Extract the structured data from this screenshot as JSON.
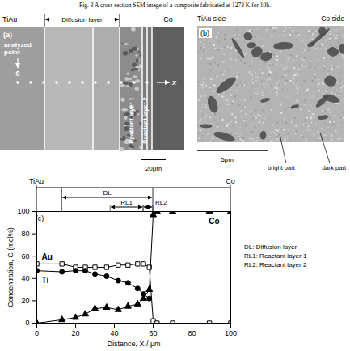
{
  "caption": "Fig. 3   A cross section SEM image of a composite fabricated at 1273 K for 10h.",
  "panel_a": {
    "label": "(a)",
    "left": "TiAu",
    "right": "Co",
    "diffusion_layer": "Diffusion layer",
    "analyzed_point": "analyzed point",
    "origin": "0",
    "direction": "x",
    "reactant_layers": [
      "Reactant layer 1",
      "Reactant layer 2"
    ],
    "scale_bar": "20μm"
  },
  "panel_b": {
    "label": "(b)",
    "left": "TiAu side",
    "right": "Co side",
    "scale_bar": "5μm",
    "annotations": [
      "bright part",
      "dark part"
    ]
  },
  "chart_data": {
    "type": "line",
    "panel_label": "(c)",
    "x_label": "Distance, X / μm",
    "y_label": "Concentration, C (mol%)",
    "x": [
      0,
      13,
      20,
      25,
      30,
      36,
      42,
      47,
      52,
      55,
      58,
      60,
      62,
      70,
      89,
      100
    ],
    "series": [
      {
        "name": "Au",
        "color": "#000000",
        "marker": "square-open",
        "line_style": "solid",
        "values": [
          53,
          53,
          50,
          50,
          50,
          50,
          52,
          52,
          53,
          53,
          50,
          2,
          0,
          0,
          0,
          0
        ]
      },
      {
        "name": "Ti",
        "color": "#000000",
        "marker": "circle",
        "line_style": "solid",
        "values": [
          47,
          46,
          47,
          47,
          44,
          42,
          38,
          36,
          31,
          26,
          22,
          null,
          null,
          null,
          null,
          null
        ]
      },
      {
        "name": "Co",
        "color": "#000000",
        "marker": "triangle",
        "line_style": "solid",
        "values": [
          0,
          3,
          5,
          8,
          13,
          14,
          12,
          15,
          17,
          22,
          30,
          97,
          100,
          100,
          100,
          100
        ]
      }
    ],
    "xlim": [
      0,
      100
    ],
    "xticks": [
      0,
      20,
      40,
      60,
      80,
      100
    ],
    "ylim": [
      0,
      100
    ],
    "yticks": [
      0,
      20,
      40,
      60,
      80,
      100
    ],
    "grid": false,
    "side_labels": [
      "TiAu",
      "Co"
    ],
    "regions": [
      {
        "label": "DL",
        "from": 13,
        "to": 60
      },
      {
        "label": "RL1",
        "from": 38,
        "to": 55
      },
      {
        "label": "RL2",
        "from": 55,
        "to": 60
      }
    ],
    "key": [
      "DL: Diffusion layer",
      "RL1: Reactant layer 1",
      "RL2: Reactant layer 2"
    ]
  }
}
